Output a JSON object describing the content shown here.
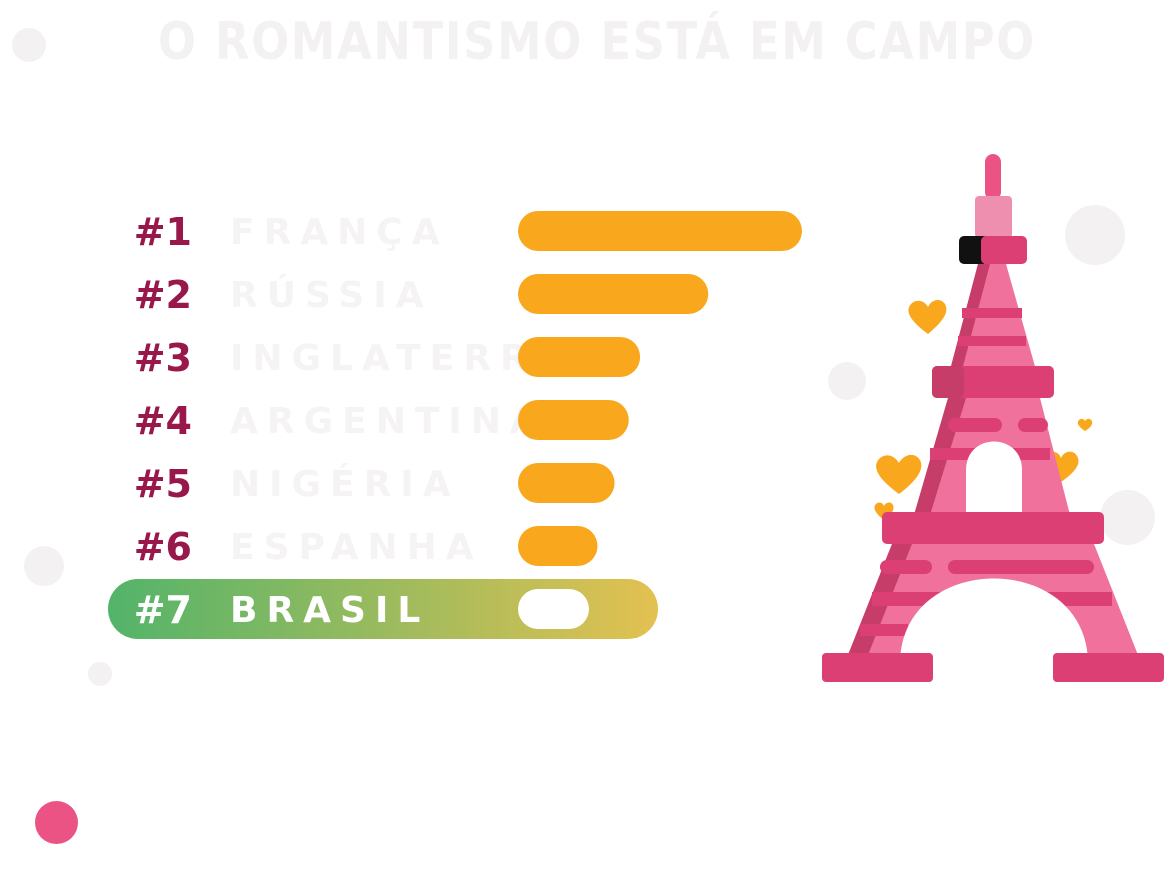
{
  "title": "O ROMANTISMO ESTÁ EM CAMPO",
  "colors": {
    "bar": "#f9a81d",
    "rank": "#99184b",
    "faded_country": "#f5f3f4",
    "highlight_start": "#52b46a",
    "highlight_end": "#e3c151",
    "highlight_text": "#ffffff",
    "highlight_bar": "#ffffff",
    "tower": "#ec5385",
    "heart": "#f9a81d"
  },
  "chart_data": {
    "type": "bar",
    "orientation": "horizontal",
    "categories": [
      "#1",
      "#2",
      "#3",
      "#4",
      "#5",
      "#6",
      "#7"
    ],
    "countries": [
      "FRANÇA",
      "RÚSSIA",
      "INGLATERRA",
      "ARGENTINA",
      "NIGÉRIA",
      "ESPANHA",
      "BRASIL"
    ],
    "values": [
      100,
      67,
      43,
      39,
      34,
      28,
      25
    ],
    "highlight_index": 6,
    "xlim": [
      0,
      100
    ]
  },
  "decor": {
    "tower_icon": "eiffel-tower-icon",
    "heart_icon": "heart-icon"
  }
}
